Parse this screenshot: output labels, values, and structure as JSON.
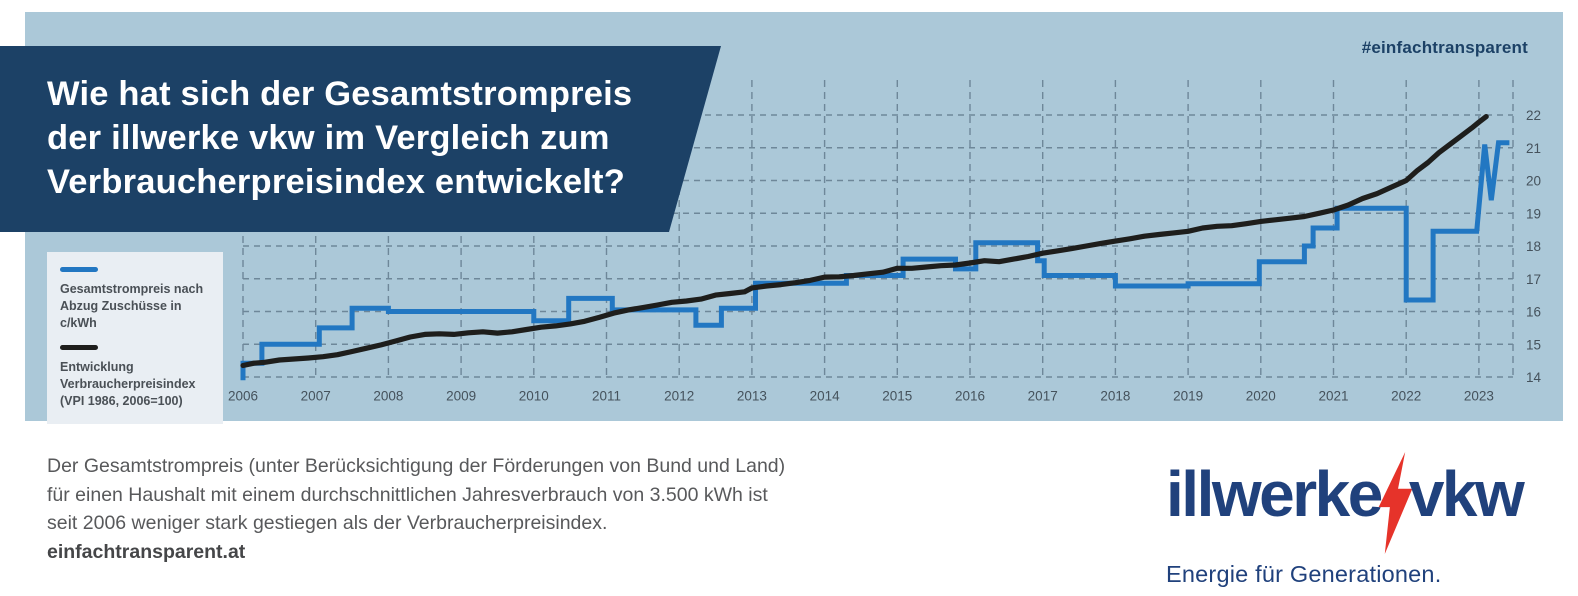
{
  "page": {
    "hashtag": "#einfachtransparent"
  },
  "title": {
    "lines": [
      "Wie hat sich der Gesamtstrompreis",
      "der illwerke vkw im Vergleich zum",
      "Verbraucherpreisindex entwickelt?"
    ]
  },
  "legend": {
    "items": [
      {
        "color": "#2277c2",
        "label_lines": [
          "Gesamtstrompreis nach",
          "Abzug Zuschüsse in c/kWh"
        ]
      },
      {
        "color": "#1e1e1c",
        "label_lines": [
          "Entwicklung",
          "Verbraucherpreisindex",
          "(VPI 1986, 2006=100)"
        ]
      }
    ]
  },
  "chart_data": {
    "type": "line",
    "title": "",
    "xlabel": "",
    "ylabel": "",
    "xlim": [
      2006,
      2023.5
    ],
    "ylim": [
      14,
      22
    ],
    "grid": "dashed",
    "x_ticks": [
      2006,
      2007,
      2008,
      2009,
      2010,
      2011,
      2012,
      2013,
      2014,
      2015,
      2016,
      2017,
      2018,
      2019,
      2020,
      2021,
      2022,
      2023
    ],
    "y_ticks": [
      14,
      15,
      16,
      17,
      18,
      19,
      20,
      21,
      22
    ],
    "series": [
      {
        "name": "Gesamtstrompreis nach Abzug Zuschüsse in c/kWh",
        "color": "#2277c2",
        "style": "step",
        "points": [
          [
            2006.0,
            13.9
          ],
          [
            2006.0,
            14.42
          ],
          [
            2006.26,
            14.42
          ],
          [
            2006.26,
            15.0
          ],
          [
            2007.05,
            15.0
          ],
          [
            2007.05,
            15.5
          ],
          [
            2007.5,
            15.5
          ],
          [
            2007.5,
            16.1
          ],
          [
            2008.0,
            16.1
          ],
          [
            2008.0,
            16.0
          ],
          [
            2010.0,
            16.0
          ],
          [
            2010.0,
            15.72
          ],
          [
            2010.48,
            15.72
          ],
          [
            2010.48,
            16.4
          ],
          [
            2011.08,
            16.4
          ],
          [
            2011.08,
            16.05
          ],
          [
            2012.23,
            16.05
          ],
          [
            2012.23,
            15.58
          ],
          [
            2012.58,
            15.58
          ],
          [
            2012.58,
            16.1
          ],
          [
            2013.05,
            16.1
          ],
          [
            2013.05,
            16.86
          ],
          [
            2014.3,
            16.86
          ],
          [
            2014.3,
            17.1
          ],
          [
            2015.08,
            17.1
          ],
          [
            2015.08,
            17.6
          ],
          [
            2015.8,
            17.6
          ],
          [
            2015.8,
            17.3
          ],
          [
            2016.08,
            17.3
          ],
          [
            2016.08,
            18.1
          ],
          [
            2016.93,
            18.1
          ],
          [
            2016.93,
            17.55
          ],
          [
            2017.02,
            17.55
          ],
          [
            2017.02,
            17.1
          ],
          [
            2018.0,
            17.1
          ],
          [
            2018.0,
            16.78
          ],
          [
            2019.0,
            16.78
          ],
          [
            2019.0,
            16.85
          ],
          [
            2019.98,
            16.85
          ],
          [
            2019.98,
            17.52
          ],
          [
            2020.6,
            17.52
          ],
          [
            2020.6,
            18.0
          ],
          [
            2020.72,
            18.0
          ],
          [
            2020.72,
            18.55
          ],
          [
            2021.05,
            18.55
          ],
          [
            2021.05,
            19.15
          ],
          [
            2022.0,
            19.15
          ],
          [
            2022.0,
            16.35
          ],
          [
            2022.37,
            16.35
          ],
          [
            2022.37,
            18.45
          ],
          [
            2022.97,
            18.45
          ],
          [
            2023.08,
            21.1
          ],
          [
            2023.17,
            19.4
          ],
          [
            2023.27,
            21.15
          ],
          [
            2023.42,
            21.15
          ]
        ]
      },
      {
        "name": "Entwicklung Verbraucherpreisindex (VPI 1986, 2006=100)",
        "color": "#1e1e1c",
        "style": "smooth",
        "points": [
          [
            2006.0,
            14.35
          ],
          [
            2006.15,
            14.42
          ],
          [
            2006.3,
            14.45
          ],
          [
            2006.5,
            14.52
          ],
          [
            2006.7,
            14.55
          ],
          [
            2006.9,
            14.58
          ],
          [
            2007.1,
            14.62
          ],
          [
            2007.3,
            14.68
          ],
          [
            2007.5,
            14.78
          ],
          [
            2007.7,
            14.88
          ],
          [
            2007.9,
            14.98
          ],
          [
            2008.1,
            15.1
          ],
          [
            2008.3,
            15.22
          ],
          [
            2008.5,
            15.3
          ],
          [
            2008.7,
            15.32
          ],
          [
            2008.9,
            15.3
          ],
          [
            2009.1,
            15.35
          ],
          [
            2009.3,
            15.38
          ],
          [
            2009.5,
            15.34
          ],
          [
            2009.7,
            15.38
          ],
          [
            2009.9,
            15.45
          ],
          [
            2010.1,
            15.52
          ],
          [
            2010.3,
            15.56
          ],
          [
            2010.5,
            15.62
          ],
          [
            2010.7,
            15.7
          ],
          [
            2010.9,
            15.82
          ],
          [
            2011.1,
            15.95
          ],
          [
            2011.3,
            16.05
          ],
          [
            2011.5,
            16.12
          ],
          [
            2011.7,
            16.2
          ],
          [
            2011.9,
            16.28
          ],
          [
            2012.1,
            16.32
          ],
          [
            2012.3,
            16.38
          ],
          [
            2012.5,
            16.5
          ],
          [
            2012.7,
            16.55
          ],
          [
            2012.9,
            16.6
          ],
          [
            2013.0,
            16.72
          ],
          [
            2013.2,
            16.78
          ],
          [
            2013.4,
            16.82
          ],
          [
            2013.6,
            16.88
          ],
          [
            2013.8,
            16.95
          ],
          [
            2014.0,
            17.05
          ],
          [
            2014.2,
            17.06
          ],
          [
            2014.4,
            17.1
          ],
          [
            2014.6,
            17.15
          ],
          [
            2014.8,
            17.2
          ],
          [
            2015.0,
            17.32
          ],
          [
            2015.2,
            17.32
          ],
          [
            2015.4,
            17.36
          ],
          [
            2015.6,
            17.4
          ],
          [
            2015.8,
            17.42
          ],
          [
            2016.0,
            17.48
          ],
          [
            2016.2,
            17.55
          ],
          [
            2016.4,
            17.52
          ],
          [
            2016.6,
            17.6
          ],
          [
            2016.8,
            17.68
          ],
          [
            2017.0,
            17.78
          ],
          [
            2017.2,
            17.85
          ],
          [
            2017.4,
            17.92
          ],
          [
            2017.6,
            18.0
          ],
          [
            2017.8,
            18.08
          ],
          [
            2018.0,
            18.15
          ],
          [
            2018.2,
            18.22
          ],
          [
            2018.4,
            18.3
          ],
          [
            2018.6,
            18.35
          ],
          [
            2018.8,
            18.4
          ],
          [
            2019.0,
            18.45
          ],
          [
            2019.2,
            18.55
          ],
          [
            2019.4,
            18.6
          ],
          [
            2019.6,
            18.62
          ],
          [
            2019.8,
            18.68
          ],
          [
            2020.0,
            18.75
          ],
          [
            2020.2,
            18.8
          ],
          [
            2020.4,
            18.85
          ],
          [
            2020.6,
            18.9
          ],
          [
            2020.8,
            19.0
          ],
          [
            2021.0,
            19.1
          ],
          [
            2021.2,
            19.25
          ],
          [
            2021.4,
            19.45
          ],
          [
            2021.6,
            19.6
          ],
          [
            2021.8,
            19.8
          ],
          [
            2022.0,
            20.0
          ],
          [
            2022.15,
            20.3
          ],
          [
            2022.3,
            20.55
          ],
          [
            2022.45,
            20.85
          ],
          [
            2022.6,
            21.1
          ],
          [
            2022.75,
            21.35
          ],
          [
            2022.9,
            21.6
          ],
          [
            2023.0,
            21.78
          ],
          [
            2023.1,
            21.95
          ]
        ]
      }
    ]
  },
  "footer": {
    "lines": [
      "Der Gesamtstrompreis (unter Berücksichtigung der Förderungen von Bund und Land)",
      "für einen Haushalt mit einem durchschnittlichen Jahresverbrauch von 3.500 kWh ist",
      "seit 2006 weniger stark gestiegen als der Verbraucherpreisindex."
    ],
    "bold_line": "einfachtransparent.at"
  },
  "logo": {
    "word1": "illwerke",
    "word2": "vkw",
    "tagline": "Energie für Generationen.",
    "navy": "#20417c",
    "red": "#e6332a"
  }
}
